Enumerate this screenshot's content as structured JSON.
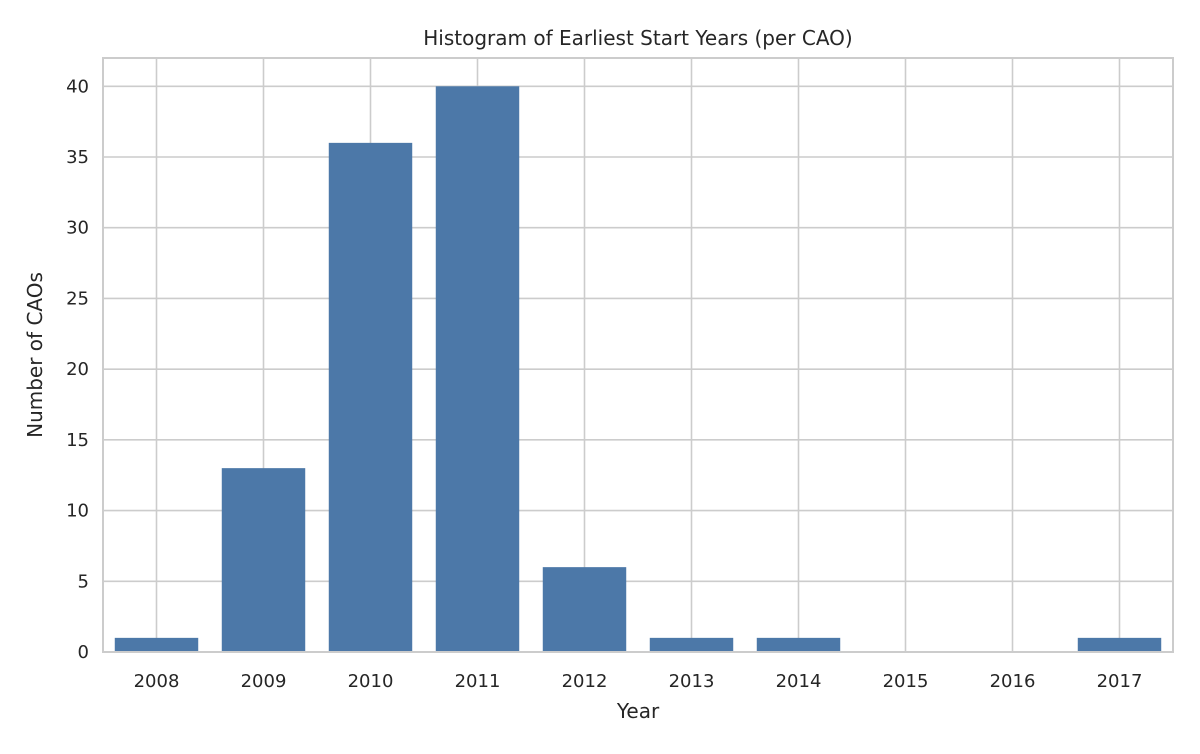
{
  "chart_data": {
    "type": "bar",
    "title": "Histogram of Earliest Start Years (per CAO)",
    "xlabel": "Year",
    "ylabel": "Number of CAOs",
    "categories": [
      "2008",
      "2009",
      "2010",
      "2011",
      "2012",
      "2013",
      "2014",
      "2015",
      "2016",
      "2017"
    ],
    "values": [
      1,
      13,
      36,
      40,
      6,
      1,
      1,
      0,
      0,
      1
    ],
    "ylim": [
      0,
      42
    ],
    "yticks": [
      0,
      5,
      10,
      15,
      20,
      25,
      30,
      35,
      40
    ],
    "grid": true,
    "colors": {
      "bar": "#4c78a8",
      "grid": "#cccccc",
      "frame": "#cccccc",
      "background": "#ffffff"
    }
  }
}
